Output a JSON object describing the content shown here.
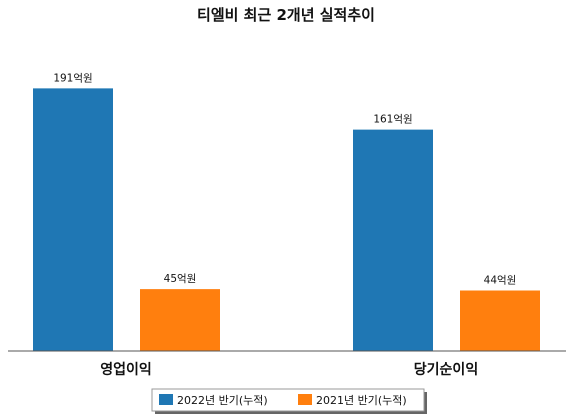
{
  "chart_data": {
    "type": "bar",
    "title": "티엘비 최근 2개년 실적추이",
    "categories": [
      "영업이익",
      "당기순이익"
    ],
    "unit": "억원",
    "series": [
      {
        "name": "2022년 반기(누적)",
        "values": [
          191,
          161
        ],
        "color": "#1f77b4"
      },
      {
        "name": "2021년 반기(누적)",
        "values": [
          45,
          44
        ],
        "color": "#ff7f0e"
      }
    ],
    "data_labels": [
      [
        "191억원",
        "161억원"
      ],
      [
        "45억원",
        "44억원"
      ]
    ],
    "ylim": [
      0,
      200
    ],
    "grid": false,
    "legend_position": "bottom-center"
  }
}
